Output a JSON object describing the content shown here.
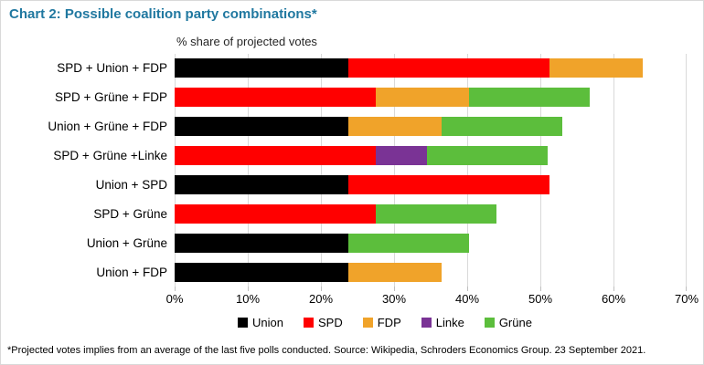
{
  "header": {
    "title": "Chart 2: Possible coalition party combinations*",
    "subtitle": "% share of projected votes"
  },
  "chart_data": {
    "type": "bar",
    "variant": "horizontal-stacked",
    "title": "Chart 2: Possible coalition party combinations*",
    "subtitle": "% share of projected votes",
    "categories": [
      "SPD + Union + FDP",
      "SPD + Grüne + FDP",
      "Union + Grüne + FDP",
      "SPD + Grüne +Linke",
      "Union + SPD",
      "SPD + Grüne",
      "Union + Grüne",
      "Union + FDP"
    ],
    "series": [
      {
        "name": "Union",
        "color": "#000000",
        "values": [
          23.8,
          0,
          23.8,
          0,
          23.8,
          0,
          23.8,
          23.8
        ]
      },
      {
        "name": "SPD",
        "color": "#ff0000",
        "values": [
          27.5,
          27.5,
          0,
          27.5,
          27.5,
          27.5,
          0,
          0
        ]
      },
      {
        "name": "FDP",
        "color": "#f0a32a",
        "values": [
          12.7,
          12.7,
          12.7,
          0,
          0,
          0,
          0,
          12.7
        ]
      },
      {
        "name": "Linke",
        "color": "#7a3395",
        "values": [
          0,
          0,
          0,
          7,
          0,
          0,
          0,
          0
        ]
      },
      {
        "name": "Grüne",
        "color": "#5cbe3c",
        "values": [
          0,
          16.5,
          16.5,
          16.5,
          0,
          16.5,
          16.5,
          0
        ]
      }
    ],
    "xlabel": "",
    "ylabel": "",
    "xlim": [
      0,
      70
    ],
    "x_ticks": [
      "0%",
      "10%",
      "20%",
      "30%",
      "40%",
      "50%",
      "60%",
      "70%"
    ],
    "grid": true,
    "legend_position": "bottom"
  },
  "footnote": "*Projected votes implies from an average of the last five polls conducted. Source: Wikipedia, Schroders Economics Group. 23 September 2021.",
  "colors": {
    "title": "#2078a0",
    "gridline": "#d9d9d9",
    "tick": "#bfbfbf",
    "text": "#000000"
  }
}
